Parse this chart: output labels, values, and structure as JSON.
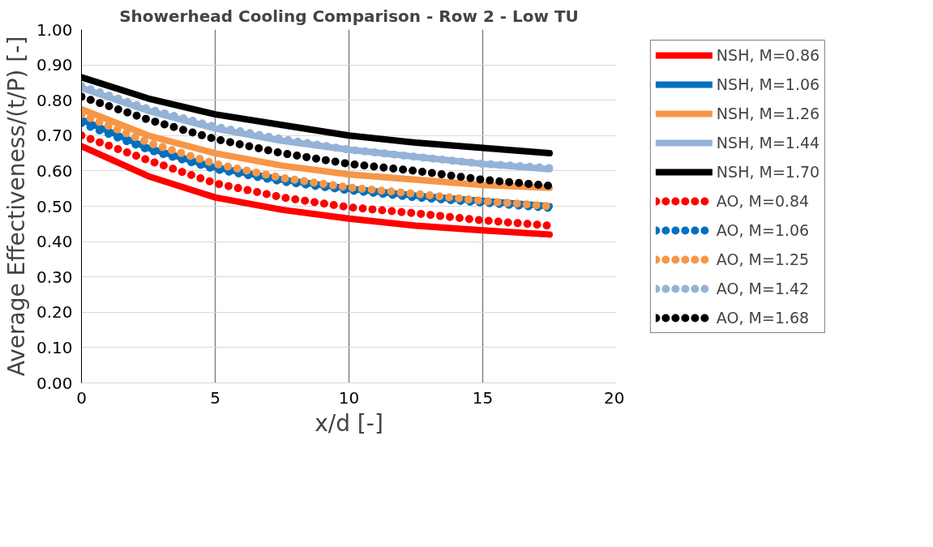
{
  "chart_data": {
    "type": "line",
    "title": "Showerhead Cooling Comparison - Row 2 - Low TU",
    "xlabel": "x/d [-]",
    "ylabel": "Average Effectiveness/(t/P) [-]",
    "x": [
      0,
      2.5,
      5,
      7.5,
      10,
      12.5,
      15,
      17.5
    ],
    "series": [
      {
        "name": "NSH, M=0.86",
        "color": "#ff0000",
        "line_style": "solid",
        "values": [
          0.67,
          0.585,
          0.525,
          0.49,
          0.465,
          0.445,
          0.432,
          0.42
        ]
      },
      {
        "name": "NSH, M=1.06",
        "color": "#0070c0",
        "line_style": "solid",
        "values": [
          0.745,
          0.665,
          0.61,
          0.575,
          0.55,
          0.53,
          0.515,
          0.5
        ]
      },
      {
        "name": "NSH, M=1.26",
        "color": "#f79646",
        "line_style": "solid",
        "values": [
          0.775,
          0.7,
          0.65,
          0.615,
          0.59,
          0.575,
          0.56,
          0.552
        ]
      },
      {
        "name": "NSH, M=1.44",
        "color": "#95b3d7",
        "line_style": "solid",
        "values": [
          0.835,
          0.77,
          0.72,
          0.685,
          0.66,
          0.64,
          0.62,
          0.605
        ]
      },
      {
        "name": "NSH, M=1.70",
        "color": "#000000",
        "line_style": "solid",
        "values": [
          0.865,
          0.805,
          0.76,
          0.73,
          0.7,
          0.68,
          0.665,
          0.65
        ]
      },
      {
        "name": "AO, M=0.84",
        "color": "#ff0000",
        "line_style": "dotted",
        "values": [
          0.7,
          0.63,
          0.565,
          0.525,
          0.497,
          0.48,
          0.46,
          0.445
        ]
      },
      {
        "name": "AO, M=1.06",
        "color": "#0070c0",
        "line_style": "dotted",
        "values": [
          0.735,
          0.66,
          0.605,
          0.57,
          0.545,
          0.525,
          0.51,
          0.495
        ]
      },
      {
        "name": "AO, M=1.25",
        "color": "#f79646",
        "line_style": "dotted",
        "values": [
          0.76,
          0.68,
          0.62,
          0.58,
          0.553,
          0.535,
          0.515,
          0.5
        ]
      },
      {
        "name": "AO, M=1.42",
        "color": "#95b3d7",
        "line_style": "dotted",
        "values": [
          0.84,
          0.775,
          0.725,
          0.69,
          0.66,
          0.64,
          0.62,
          0.608
        ]
      },
      {
        "name": "AO, M=1.68",
        "color": "#000000",
        "line_style": "dotted",
        "values": [
          0.81,
          0.745,
          0.69,
          0.65,
          0.62,
          0.6,
          0.575,
          0.558
        ]
      }
    ],
    "xlim": [
      0,
      20
    ],
    "ylim": [
      0,
      1.0
    ],
    "xticks": [
      0,
      5,
      10,
      15,
      20
    ],
    "yticks": [
      {
        "value": 0,
        "label": "0.00"
      },
      {
        "value": 0.1,
        "label": "0.10"
      },
      {
        "value": 0.2,
        "label": "0.20"
      },
      {
        "value": 0.3,
        "label": "0.30"
      },
      {
        "value": 0.4,
        "label": "0.40"
      },
      {
        "value": 0.5,
        "label": "0.50"
      },
      {
        "value": 0.6,
        "label": "0.60"
      },
      {
        "value": 0.7,
        "label": "0.70"
      },
      {
        "value": 0.8,
        "label": "0.80"
      },
      {
        "value": 0.9,
        "label": "0.90"
      },
      {
        "value": 1.0,
        "label": "1.00"
      }
    ],
    "grid": true,
    "legend": "right",
    "marker": "none"
  }
}
